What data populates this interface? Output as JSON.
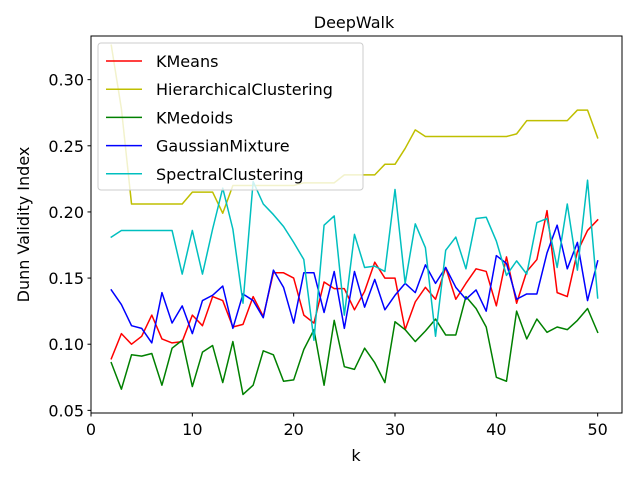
{
  "chart_data": {
    "type": "line",
    "title": "DeepWalk",
    "xlabel": "k",
    "ylabel": "Dunn Validity Index",
    "xlim": [
      0,
      52.4
    ],
    "ylim": [
      0.048,
      0.333
    ],
    "xticks": [
      0,
      10,
      20,
      30,
      40,
      50
    ],
    "yticks": [
      0.05,
      0.1,
      0.15,
      0.2,
      0.25,
      0.3
    ],
    "ytick_labels": [
      "0.05",
      "0.10",
      "0.15",
      "0.20",
      "0.25",
      "0.30"
    ],
    "grid": false,
    "legend_position": "top-left",
    "x": [
      2,
      3,
      4,
      5,
      6,
      7,
      8,
      9,
      10,
      11,
      12,
      13,
      14,
      15,
      16,
      17,
      18,
      19,
      20,
      21,
      22,
      23,
      24,
      25,
      26,
      27,
      28,
      29,
      30,
      31,
      32,
      33,
      34,
      35,
      36,
      37,
      38,
      39,
      40,
      41,
      42,
      43,
      44,
      45,
      46,
      47,
      48,
      49,
      50
    ],
    "series": [
      {
        "name": "KMeans",
        "color": "#ff0000",
        "values": [
          0.089,
          0.108,
          0.1,
          0.106,
          0.122,
          0.104,
          0.101,
          0.102,
          0.122,
          0.114,
          0.136,
          0.133,
          0.113,
          0.115,
          0.136,
          0.121,
          0.154,
          0.154,
          0.15,
          0.122,
          0.116,
          0.147,
          0.142,
          0.142,
          0.126,
          0.14,
          0.162,
          0.15,
          0.15,
          0.111,
          0.132,
          0.143,
          0.134,
          0.158,
          0.134,
          0.146,
          0.157,
          0.155,
          0.129,
          0.166,
          0.131,
          0.155,
          0.164,
          0.201,
          0.139,
          0.136,
          0.17,
          0.186,
          0.194
        ]
      },
      {
        "name": "HierarchicalClustering",
        "color": "#bfbf00",
        "values": [
          0.326,
          0.278,
          0.206,
          0.206,
          0.206,
          0.206,
          0.206,
          0.206,
          0.215,
          0.215,
          0.215,
          0.199,
          0.22,
          0.22,
          0.22,
          0.22,
          0.22,
          0.22,
          0.22,
          0.222,
          0.222,
          0.222,
          0.222,
          0.228,
          0.228,
          0.228,
          0.228,
          0.236,
          0.236,
          0.248,
          0.262,
          0.257,
          0.257,
          0.257,
          0.257,
          0.257,
          0.257,
          0.257,
          0.257,
          0.257,
          0.259,
          0.269,
          0.269,
          0.269,
          0.269,
          0.269,
          0.277,
          0.277,
          0.256
        ]
      },
      {
        "name": "KMedoids",
        "color": "#008000",
        "values": [
          0.086,
          0.066,
          0.092,
          0.091,
          0.093,
          0.069,
          0.097,
          0.103,
          0.068,
          0.094,
          0.099,
          0.071,
          0.102,
          0.062,
          0.069,
          0.095,
          0.092,
          0.072,
          0.073,
          0.096,
          0.111,
          0.069,
          0.118,
          0.083,
          0.081,
          0.097,
          0.086,
          0.071,
          0.117,
          0.111,
          0.102,
          0.11,
          0.119,
          0.107,
          0.107,
          0.136,
          0.127,
          0.113,
          0.075,
          0.072,
          0.125,
          0.104,
          0.119,
          0.109,
          0.113,
          0.111,
          0.118,
          0.127,
          0.109
        ]
      },
      {
        "name": "GaussianMixture",
        "color": "#0000ff",
        "values": [
          0.141,
          0.13,
          0.114,
          0.112,
          0.101,
          0.139,
          0.116,
          0.129,
          0.108,
          0.133,
          0.137,
          0.144,
          0.112,
          0.138,
          0.133,
          0.12,
          0.156,
          0.143,
          0.116,
          0.154,
          0.154,
          0.124,
          0.155,
          0.112,
          0.155,
          0.128,
          0.149,
          0.126,
          0.137,
          0.146,
          0.139,
          0.16,
          0.146,
          0.158,
          0.143,
          0.134,
          0.141,
          0.125,
          0.167,
          0.161,
          0.134,
          0.138,
          0.138,
          0.169,
          0.19,
          0.157,
          0.177,
          0.133,
          0.163
        ]
      },
      {
        "name": "SpectralClustering",
        "color": "#00bfbf",
        "values": [
          0.181,
          0.186,
          0.186,
          0.186,
          0.186,
          0.186,
          0.186,
          0.153,
          0.186,
          0.153,
          0.187,
          0.218,
          0.187,
          0.131,
          0.223,
          0.206,
          0.198,
          0.189,
          0.177,
          0.164,
          0.103,
          0.19,
          0.197,
          0.122,
          0.183,
          0.158,
          0.159,
          0.155,
          0.217,
          0.146,
          0.191,
          0.173,
          0.106,
          0.171,
          0.181,
          0.157,
          0.195,
          0.196,
          0.178,
          0.152,
          0.163,
          0.153,
          0.192,
          0.195,
          0.158,
          0.206,
          0.156,
          0.224,
          0.135
        ]
      }
    ]
  }
}
